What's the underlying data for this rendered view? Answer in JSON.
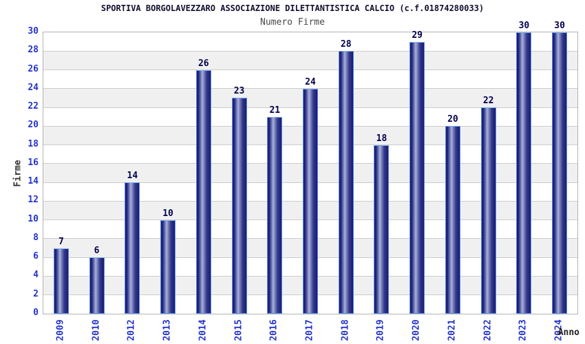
{
  "header": {
    "title": "SPORTIVA BORGOLAVEZZARO ASSOCIAZIONE DILETTANTISTICA CALCIO (c.f.01874280033)",
    "subtitle": "Numero Firme"
  },
  "chart_data": {
    "type": "bar",
    "title": "SPORTIVA BORGOLAVEZZARO ASSOCIAZIONE DILETTANTISTICA CALCIO (c.f.01874280033)",
    "subtitle": "Numero Firme",
    "categories": [
      "2009",
      "2010",
      "2012",
      "2013",
      "2014",
      "2015",
      "2016",
      "2017",
      "2018",
      "2019",
      "2020",
      "2021",
      "2022",
      "2023",
      "2024"
    ],
    "values": [
      7,
      6,
      14,
      10,
      26,
      23,
      21,
      24,
      28,
      18,
      29,
      20,
      22,
      30,
      30
    ],
    "xlabel": "Anno",
    "ylabel": "Firme",
    "ylim": [
      0,
      30
    ],
    "ytick_step": 2,
    "bar_labels": true,
    "grid": "horizontal-bands-alternating",
    "legend": "none",
    "colors": {
      "bar_dark": "#1b1b6e",
      "bar_highlight": "#a9b2dc",
      "bar_edge": "#5590e8",
      "tick_label": "#2433cc",
      "value_label": "#00004d",
      "band_white": "#ffffff",
      "band_gray": "#f0f0f0",
      "grid_line": "#cccccc",
      "plot_border": "#b3b3b3",
      "title_color": "#10102e",
      "subtitle_color": "#474747",
      "axis_title_color": "#333333"
    }
  }
}
